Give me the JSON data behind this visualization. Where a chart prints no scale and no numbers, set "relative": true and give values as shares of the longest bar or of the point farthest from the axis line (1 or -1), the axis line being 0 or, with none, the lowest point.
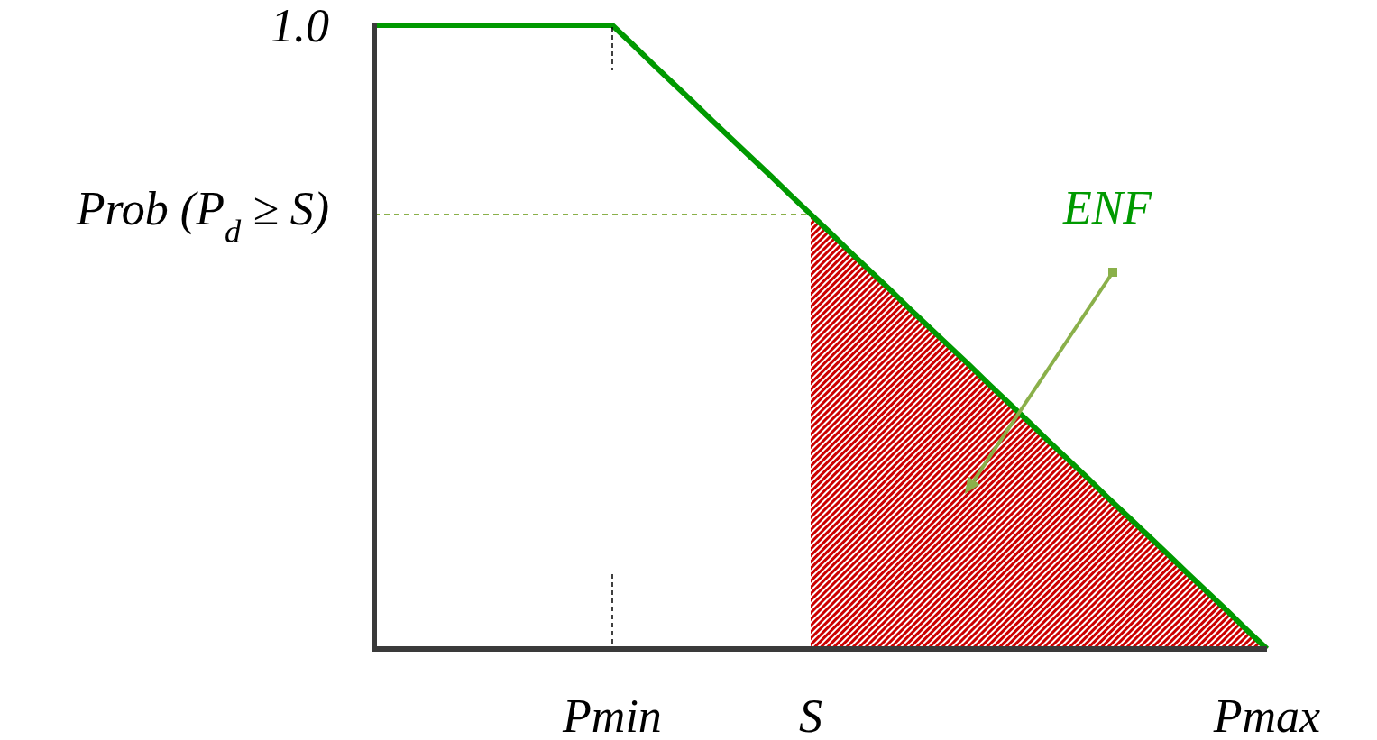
{
  "chart_data": {
    "type": "line",
    "relative": true,
    "categories": [
      null,
      null,
      null,
      null,
      null,
      null,
      null,
      null,
      null,
      null,
      null,
      null,
      "Pmin",
      null,
      null,
      null,
      null,
      null,
      null,
      null,
      null,
      null,
      "S",
      null,
      null,
      null,
      null,
      null,
      null,
      null,
      null,
      null,
      null,
      null,
      null,
      null,
      null,
      null,
      null,
      null,
      null,
      null,
      null,
      null,
      null,
      "Pmax"
    ],
    "series": [
      {
        "type": "area",
        "color": "#cc0000",
        "values": [
          null,
          null,
          null,
          null,
          null,
          null,
          null,
          null,
          null,
          null,
          null,
          null,
          null,
          null,
          null,
          null,
          null,
          null,
          null,
          null,
          null,
          null,
          0.697,
          0.667,
          0.636,
          0.606,
          0.576,
          0.545,
          0.515,
          0.485,
          0.455,
          0.424,
          0.394,
          0.364,
          0.333,
          0.303,
          0.273,
          0.242,
          0.212,
          0.182,
          0.152,
          0.121,
          0.091,
          0.061,
          0.03,
          0
        ]
      },
      {
        "type": "line",
        "color": "#8ab04a",
        "line_style": "dashed",
        "values": [
          0.697,
          0.697,
          0.697,
          0.697,
          0.697,
          0.697,
          0.697,
          0.697,
          0.697,
          0.697,
          0.697,
          0.697,
          0.697,
          0.697,
          0.697,
          0.697,
          0.697,
          0.697,
          0.697,
          0.697,
          0.697,
          0.697,
          0.697,
          null,
          null,
          null,
          null,
          null,
          null,
          null,
          null,
          null,
          null,
          null,
          null,
          null,
          null,
          null,
          null,
          null,
          null,
          null,
          null,
          null,
          null,
          null
        ]
      },
      {
        "color": "#009900",
        "line_style": "solid",
        "values": [
          1,
          1,
          1,
          1,
          1,
          1,
          1,
          1,
          1,
          1,
          1,
          1,
          1,
          0.97,
          0.939,
          0.909,
          0.879,
          0.848,
          0.818,
          0.788,
          0.758,
          0.727,
          0.697,
          0.667,
          0.636,
          0.606,
          0.576,
          0.545,
          0.515,
          0.485,
          0.455,
          0.424,
          0.394,
          0.364,
          0.333,
          0.303,
          0.273,
          0.242,
          0.212,
          0.182,
          0.152,
          0.121,
          0.091,
          0.061,
          0.03,
          0
        ]
      }
    ],
    "annotations": [
      "1.0",
      "Prob (P$_{d}$ ≥ S)",
      "ENF"
    ]
  }
}
